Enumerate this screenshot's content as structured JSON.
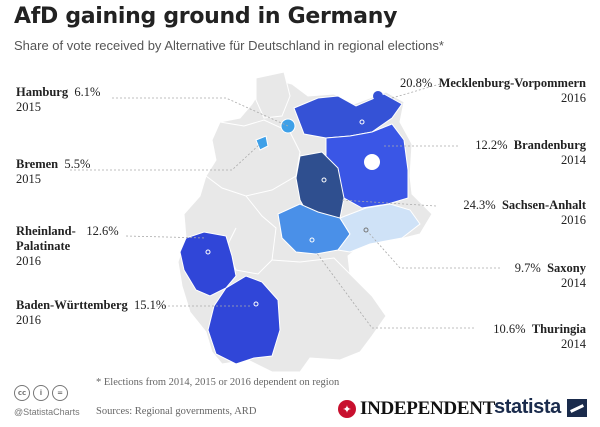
{
  "header": {
    "title": "AfD gaining ground in Germany",
    "subtitle": "Share of vote received by Alternative für Deutschland in regional elections*"
  },
  "chart_data": {
    "type": "choropleth-map",
    "title": "AfD gaining ground in Germany",
    "subtitle": "Share of vote received by Alternative für Deutschland in regional elections*",
    "unit": "%",
    "states": [
      {
        "name": "Hamburg",
        "value": 6.1,
        "value_label": "6.1%",
        "year": "2015",
        "color": "#3ea0e8"
      },
      {
        "name": "Bremen",
        "value": 5.5,
        "value_label": "5.5%",
        "year": "2015",
        "color": "#3ea0e8"
      },
      {
        "name": "Rheinland-Palatinate",
        "name_line1": "Rheinland-",
        "name_line2": "Palatinate",
        "value": 12.6,
        "value_label": "12.6%",
        "year": "2016",
        "color": "#3046d8"
      },
      {
        "name": "Baden-Württemberg",
        "value": 15.1,
        "value_label": "15.1%",
        "year": "2016",
        "color": "#3046d8"
      },
      {
        "name": "Mecklenburg-Vorpommern",
        "value": 20.8,
        "value_label": "20.8%",
        "year": "2016",
        "color": "#3552d6"
      },
      {
        "name": "Brandenburg",
        "value": 12.2,
        "value_label": "12.2%",
        "year": "2014",
        "color": "#3a56e6"
      },
      {
        "name": "Sachsen-Anhalt",
        "value": 24.3,
        "value_label": "24.3%",
        "year": "2016",
        "color": "#2f4f8f"
      },
      {
        "name": "Saxony",
        "value": 9.7,
        "value_label": "9.7%",
        "year": "2014",
        "color": "#cfe2f7"
      },
      {
        "name": "Thuringia",
        "value": 10.6,
        "value_label": "10.6%",
        "year": "2014",
        "color": "#4a90e8"
      }
    ],
    "no_election_color": "#e8e8e8"
  },
  "footer": {
    "note": "* Elections from 2014, 2015 or 2016 dependent on region",
    "source": "Sources: Regional governments, ARD",
    "handle": "@StatistaCharts",
    "cc_icons": [
      "cc",
      "i",
      "="
    ],
    "brand_independent": "INDEPENDENT",
    "brand_statista": "statista"
  }
}
